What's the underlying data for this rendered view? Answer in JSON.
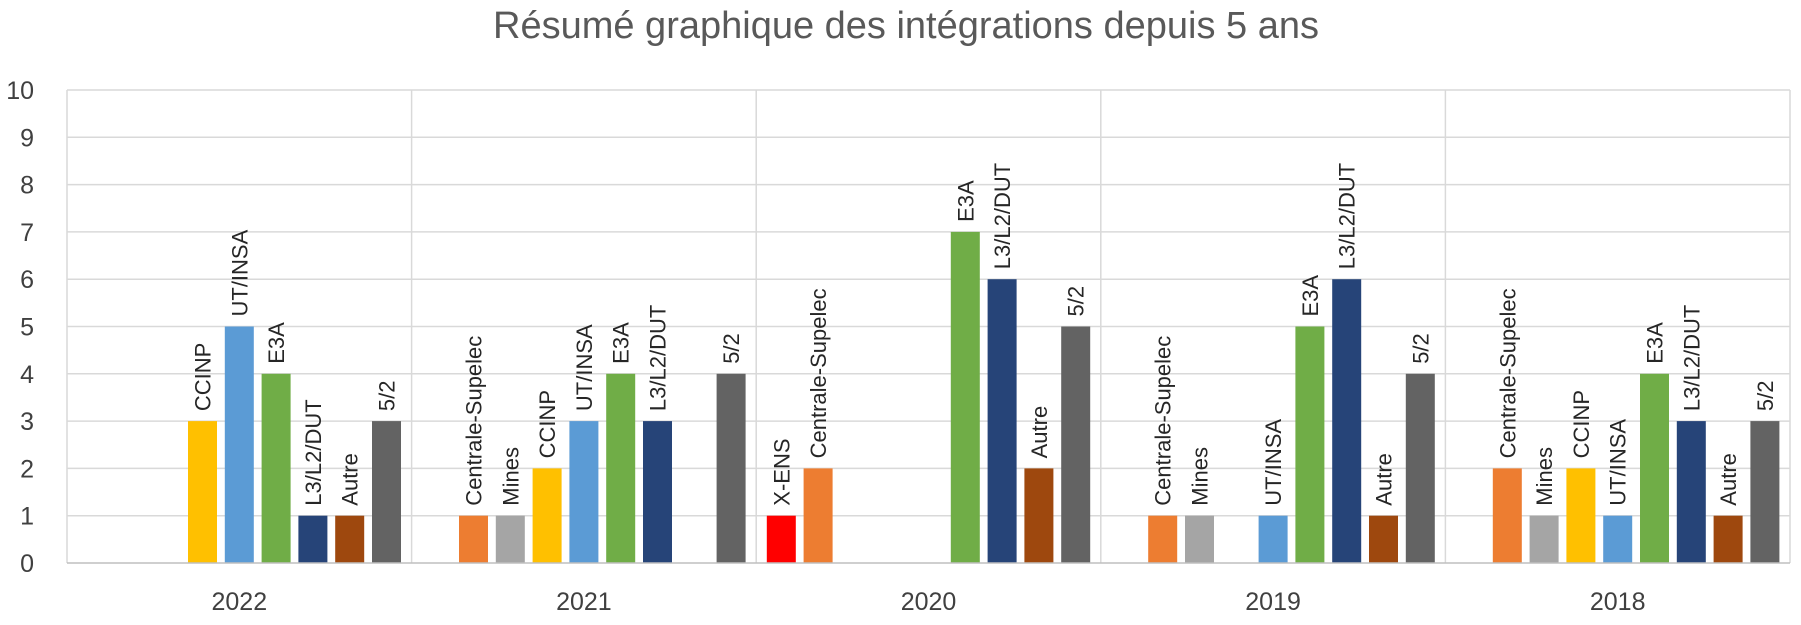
{
  "chart_data": {
    "type": "bar",
    "title": "Résumé graphique des intégrations depuis 5 ans",
    "xlabel": "",
    "ylabel": "",
    "ylim": [
      0,
      10
    ],
    "yticks": [
      0,
      1,
      2,
      3,
      4,
      5,
      6,
      7,
      8,
      9,
      10
    ],
    "grid": true,
    "legend": "none",
    "data_labels": "rotated-above-bars",
    "series_colors": {
      "X-ENS": "#ff0000",
      "Centrale-Supelec": "#ed7d31",
      "Mines": "#a5a5a5",
      "CCINP": "#ffc000",
      "UT/INSA": "#5b9bd5",
      "E3A": "#70ad47",
      "L3/L2/DUT": "#264478",
      "Autre": "#9e480e",
      "5/2": "#636363"
    },
    "slot_order": [
      "X-ENS",
      "Centrale-Supelec",
      "Mines",
      "CCINP",
      "UT/INSA",
      "E3A",
      "L3/L2/DUT",
      "Autre",
      "5/2"
    ],
    "groups": [
      {
        "category": "2022",
        "bars": [
          {
            "label": "CCINP",
            "value": 3
          },
          {
            "label": "UT/INSA",
            "value": 5
          },
          {
            "label": "E3A",
            "value": 4
          },
          {
            "label": "L3/L2/DUT",
            "value": 1
          },
          {
            "label": "Autre",
            "value": 1
          },
          {
            "label": "5/2",
            "value": 3
          }
        ]
      },
      {
        "category": "2021",
        "bars": [
          {
            "label": "Centrale-Supelec",
            "value": 1
          },
          {
            "label": "Mines",
            "value": 1
          },
          {
            "label": "CCINP",
            "value": 2
          },
          {
            "label": "UT/INSA",
            "value": 3
          },
          {
            "label": "E3A",
            "value": 4
          },
          {
            "label": "L3/L2/DUT",
            "value": 3
          },
          {
            "label": "5/2",
            "value": 4
          }
        ]
      },
      {
        "category": "2020",
        "bars": [
          {
            "label": "X-ENS",
            "value": 1
          },
          {
            "label": "Centrale-Supelec",
            "value": 2
          },
          {
            "label": "E3A",
            "value": 7
          },
          {
            "label": "L3/L2/DUT",
            "value": 6
          },
          {
            "label": "Autre",
            "value": 2
          },
          {
            "label": "5/2",
            "value": 5
          }
        ]
      },
      {
        "category": "2019",
        "bars": [
          {
            "label": "Centrale-Supelec",
            "value": 1
          },
          {
            "label": "Mines",
            "value": 1
          },
          {
            "label": "UT/INSA",
            "value": 1
          },
          {
            "label": "E3A",
            "value": 5
          },
          {
            "label": "L3/L2/DUT",
            "value": 6
          },
          {
            "label": "Autre",
            "value": 1
          },
          {
            "label": "5/2",
            "value": 4
          }
        ]
      },
      {
        "category": "2018",
        "bars": [
          {
            "label": "Centrale-Supelec",
            "value": 2
          },
          {
            "label": "Mines",
            "value": 1
          },
          {
            "label": "CCINP",
            "value": 2
          },
          {
            "label": "UT/INSA",
            "value": 1
          },
          {
            "label": "E3A",
            "value": 4
          },
          {
            "label": "L3/L2/DUT",
            "value": 3
          },
          {
            "label": "Autre",
            "value": 1
          },
          {
            "label": "5/2",
            "value": 3
          }
        ]
      }
    ]
  }
}
